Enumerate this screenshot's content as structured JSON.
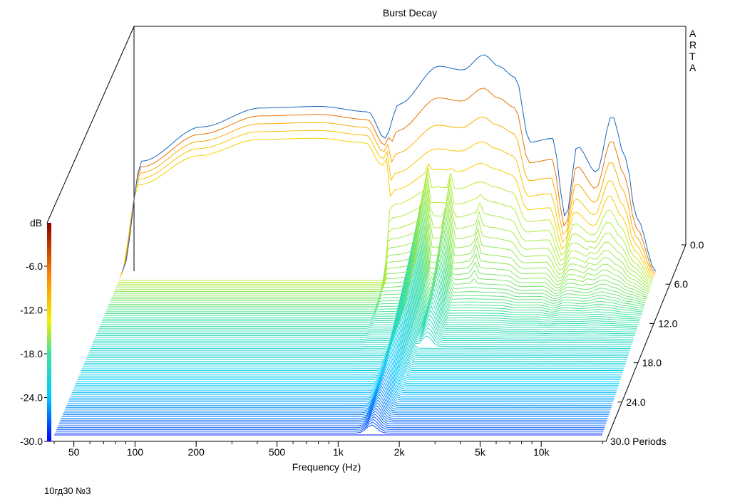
{
  "chart_data": {
    "type": "waterfall",
    "title": "Burst Decay",
    "watermark": [
      "A",
      "R",
      "T",
      "A"
    ],
    "xlabel": "Frequency (Hz)",
    "x_scale": "log",
    "x_range_hz": [
      40,
      20000
    ],
    "x_ticks": [
      {
        "value": 50,
        "label": "50"
      },
      {
        "value": 100,
        "label": "100"
      },
      {
        "value": 200,
        "label": "200"
      },
      {
        "value": 500,
        "label": "500"
      },
      {
        "value": 1000,
        "label": "1k"
      },
      {
        "value": 2000,
        "label": "2k"
      },
      {
        "value": 5000,
        "label": "5k"
      },
      {
        "value": 10000,
        "label": "10k"
      }
    ],
    "z_label": "Periods",
    "z_range": [
      0,
      30
    ],
    "z_ticks": [
      {
        "value": 0,
        "label": "0.0"
      },
      {
        "value": 6,
        "label": "6.0"
      },
      {
        "value": 12,
        "label": "12.0"
      },
      {
        "value": 18,
        "label": "18.0"
      },
      {
        "value": 24,
        "label": "24.0"
      },
      {
        "value": 30,
        "label": "30.0 Periods"
      }
    ],
    "colorbar_label": "dB",
    "colorbar_ticks": [
      "-6.0",
      "-12.0",
      "-18.0",
      "-24.0",
      "-30.0"
    ],
    "db_range": [
      -30,
      0
    ],
    "num_slices": 90,
    "response_peaks_db": [
      {
        "freq_hz": 40,
        "db": -30
      },
      {
        "freq_hz": 50,
        "db": -15.5
      },
      {
        "freq_hz": 100,
        "db": -11
      },
      {
        "freq_hz": 200,
        "db": -8.5
      },
      {
        "freq_hz": 400,
        "db": -8.3
      },
      {
        "freq_hz": 700,
        "db": -9
      },
      {
        "freq_hz": 850,
        "db": -12.5
      },
      {
        "freq_hz": 1000,
        "db": -8
      },
      {
        "freq_hz": 1600,
        "db": -3
      },
      {
        "freq_hz": 2100,
        "db": -3.5
      },
      {
        "freq_hz": 2700,
        "db": -1.5
      },
      {
        "freq_hz": 3200,
        "db": -3
      },
      {
        "freq_hz": 3900,
        "db": -4.5
      },
      {
        "freq_hz": 4600,
        "db": -13
      },
      {
        "freq_hz": 6000,
        "db": -12.5
      },
      {
        "freq_hz": 7000,
        "db": -23
      },
      {
        "freq_hz": 8000,
        "db": -13.5
      },
      {
        "freq_hz": 10000,
        "db": -17
      },
      {
        "freq_hz": 12000,
        "db": -9.5
      },
      {
        "freq_hz": 14000,
        "db": -15
      },
      {
        "freq_hz": 16000,
        "db": -23
      },
      {
        "freq_hz": 20000,
        "db": -30
      }
    ],
    "resonance_ridges": [
      {
        "freq_hz": 1450,
        "decay_periods": 30
      },
      {
        "freq_hz": 1900,
        "decay_periods": 14
      },
      {
        "freq_hz": 2700,
        "decay_periods": 6
      },
      {
        "freq_hz": 3800,
        "decay_periods": 4
      },
      {
        "freq_hz": 10000,
        "decay_periods": 5
      }
    ]
  },
  "footer_note": "10гд30 №3",
  "colors": {
    "background": "#ffffff",
    "floor_lines": "#1565c0",
    "axes": "#000000"
  }
}
